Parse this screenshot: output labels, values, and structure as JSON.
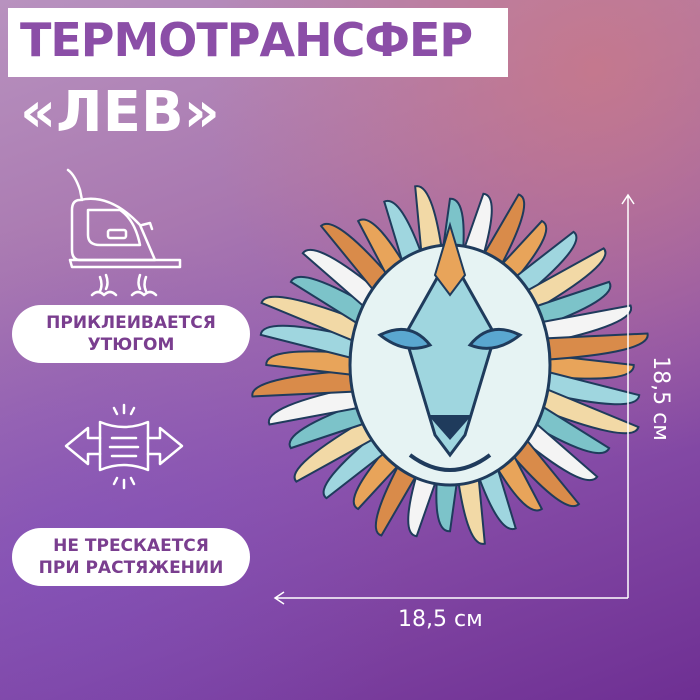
{
  "title": "ТЕРМОТРАНСФЕР",
  "subtitle": "«ЛЕВ»",
  "features": [
    {
      "icon": "iron-icon",
      "line1": "ПРИКЛЕИВАЕТСЯ",
      "line2": "УТЮГОМ"
    },
    {
      "icon": "stretch-icon",
      "line1": "НЕ ТРЕСКАЕТСЯ",
      "line2": "ПРИ РАСТЯЖЕНИИ"
    }
  ],
  "dimensions": {
    "height": "18,5 см",
    "width": "18,5 см"
  },
  "colors": {
    "title": "#8b4ea7",
    "pill_text": "#7a3e8f"
  }
}
